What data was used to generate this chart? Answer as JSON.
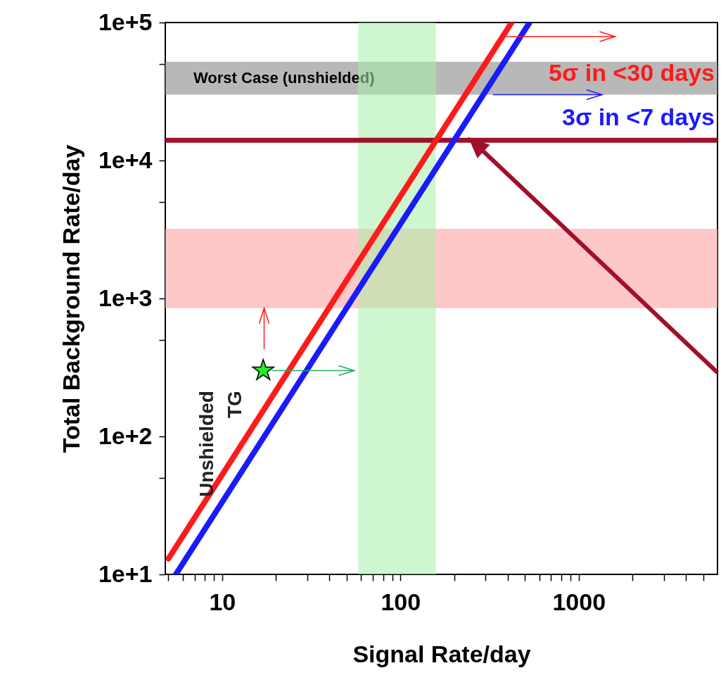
{
  "chart_data": {
    "type": "line",
    "xlabel": "Signal Rate/day",
    "ylabel": "Total Background Rate/day",
    "log": "xy",
    "xlim": [
      4.8,
      6000
    ],
    "ylim": [
      10,
      100000
    ],
    "xticks": [
      {
        "value": 5,
        "label": null
      },
      {
        "value": 6,
        "label": null
      },
      {
        "value": 7,
        "label": null
      },
      {
        "value": 8,
        "label": null
      },
      {
        "value": 9,
        "label": null
      },
      10,
      {
        "value": 20,
        "label": null
      },
      {
        "value": 30,
        "label": null
      },
      {
        "value": 40,
        "label": null
      },
      {
        "value": 50,
        "label": null
      },
      {
        "value": 60,
        "label": null
      },
      {
        "value": 70,
        "label": null
      },
      {
        "value": 80,
        "label": null
      },
      {
        "value": 90,
        "label": null
      },
      100,
      {
        "value": 200,
        "label": null
      },
      {
        "value": 300,
        "label": null
      },
      {
        "value": 400,
        "label": null
      },
      {
        "value": 500,
        "label": null
      },
      {
        "value": 600,
        "label": null
      },
      {
        "value": 700,
        "label": null
      },
      {
        "value": 800,
        "label": null
      },
      {
        "value": 900,
        "label": null
      },
      1000,
      {
        "value": 2000,
        "label": null
      },
      {
        "value": 3000,
        "label": null
      },
      {
        "value": 4000,
        "label": null
      },
      {
        "value": 5000,
        "label": null
      }
    ],
    "yticks": [
      {
        "value": 10,
        "label": "1e+1"
      },
      {
        "value": 50,
        "label": null
      },
      {
        "value": 100,
        "label": "1e+2"
      },
      {
        "value": 500,
        "label": null
      },
      {
        "value": 1000,
        "label": "1e+3"
      },
      {
        "value": 5000,
        "label": null
      },
      {
        "value": 10000,
        "label": "1e+4"
      },
      {
        "value": 50000,
        "label": null
      },
      {
        "value": 100000,
        "label": "1e+5"
      }
    ],
    "grid": false,
    "legend": "top right",
    "line_style": "solid",
    "series": [
      {
        "name": "5σ in <30 days",
        "color": "#ff1a1a",
        "x": [
          5,
          420
        ],
        "values": [
          13,
          100000
        ]
      },
      {
        "name": "3σ in <7 days",
        "color": "#1a1aff",
        "x": [
          5.5,
          530
        ],
        "values": [
          10,
          100000
        ]
      },
      {
        "name": "Unshielded TG",
        "type": "scatter",
        "marker": "star",
        "color": "#22ee22",
        "x": [
          17
        ],
        "values": [
          300
        ]
      }
    ],
    "ref_lines": [
      {
        "axis": "y",
        "value": 14000,
        "color": "#a0102a"
      }
    ],
    "bands": [
      {
        "axis": "y",
        "from": 30000,
        "to": 52000,
        "label": "Worst Case (unshielded)",
        "color": "#9a9a9a"
      },
      {
        "axis": "y",
        "from": 850,
        "to": 3200,
        "color": "#ffb0b0"
      },
      {
        "axis": "x",
        "from": 58,
        "to": 158,
        "color": "#a8f0a8"
      }
    ]
  }
}
